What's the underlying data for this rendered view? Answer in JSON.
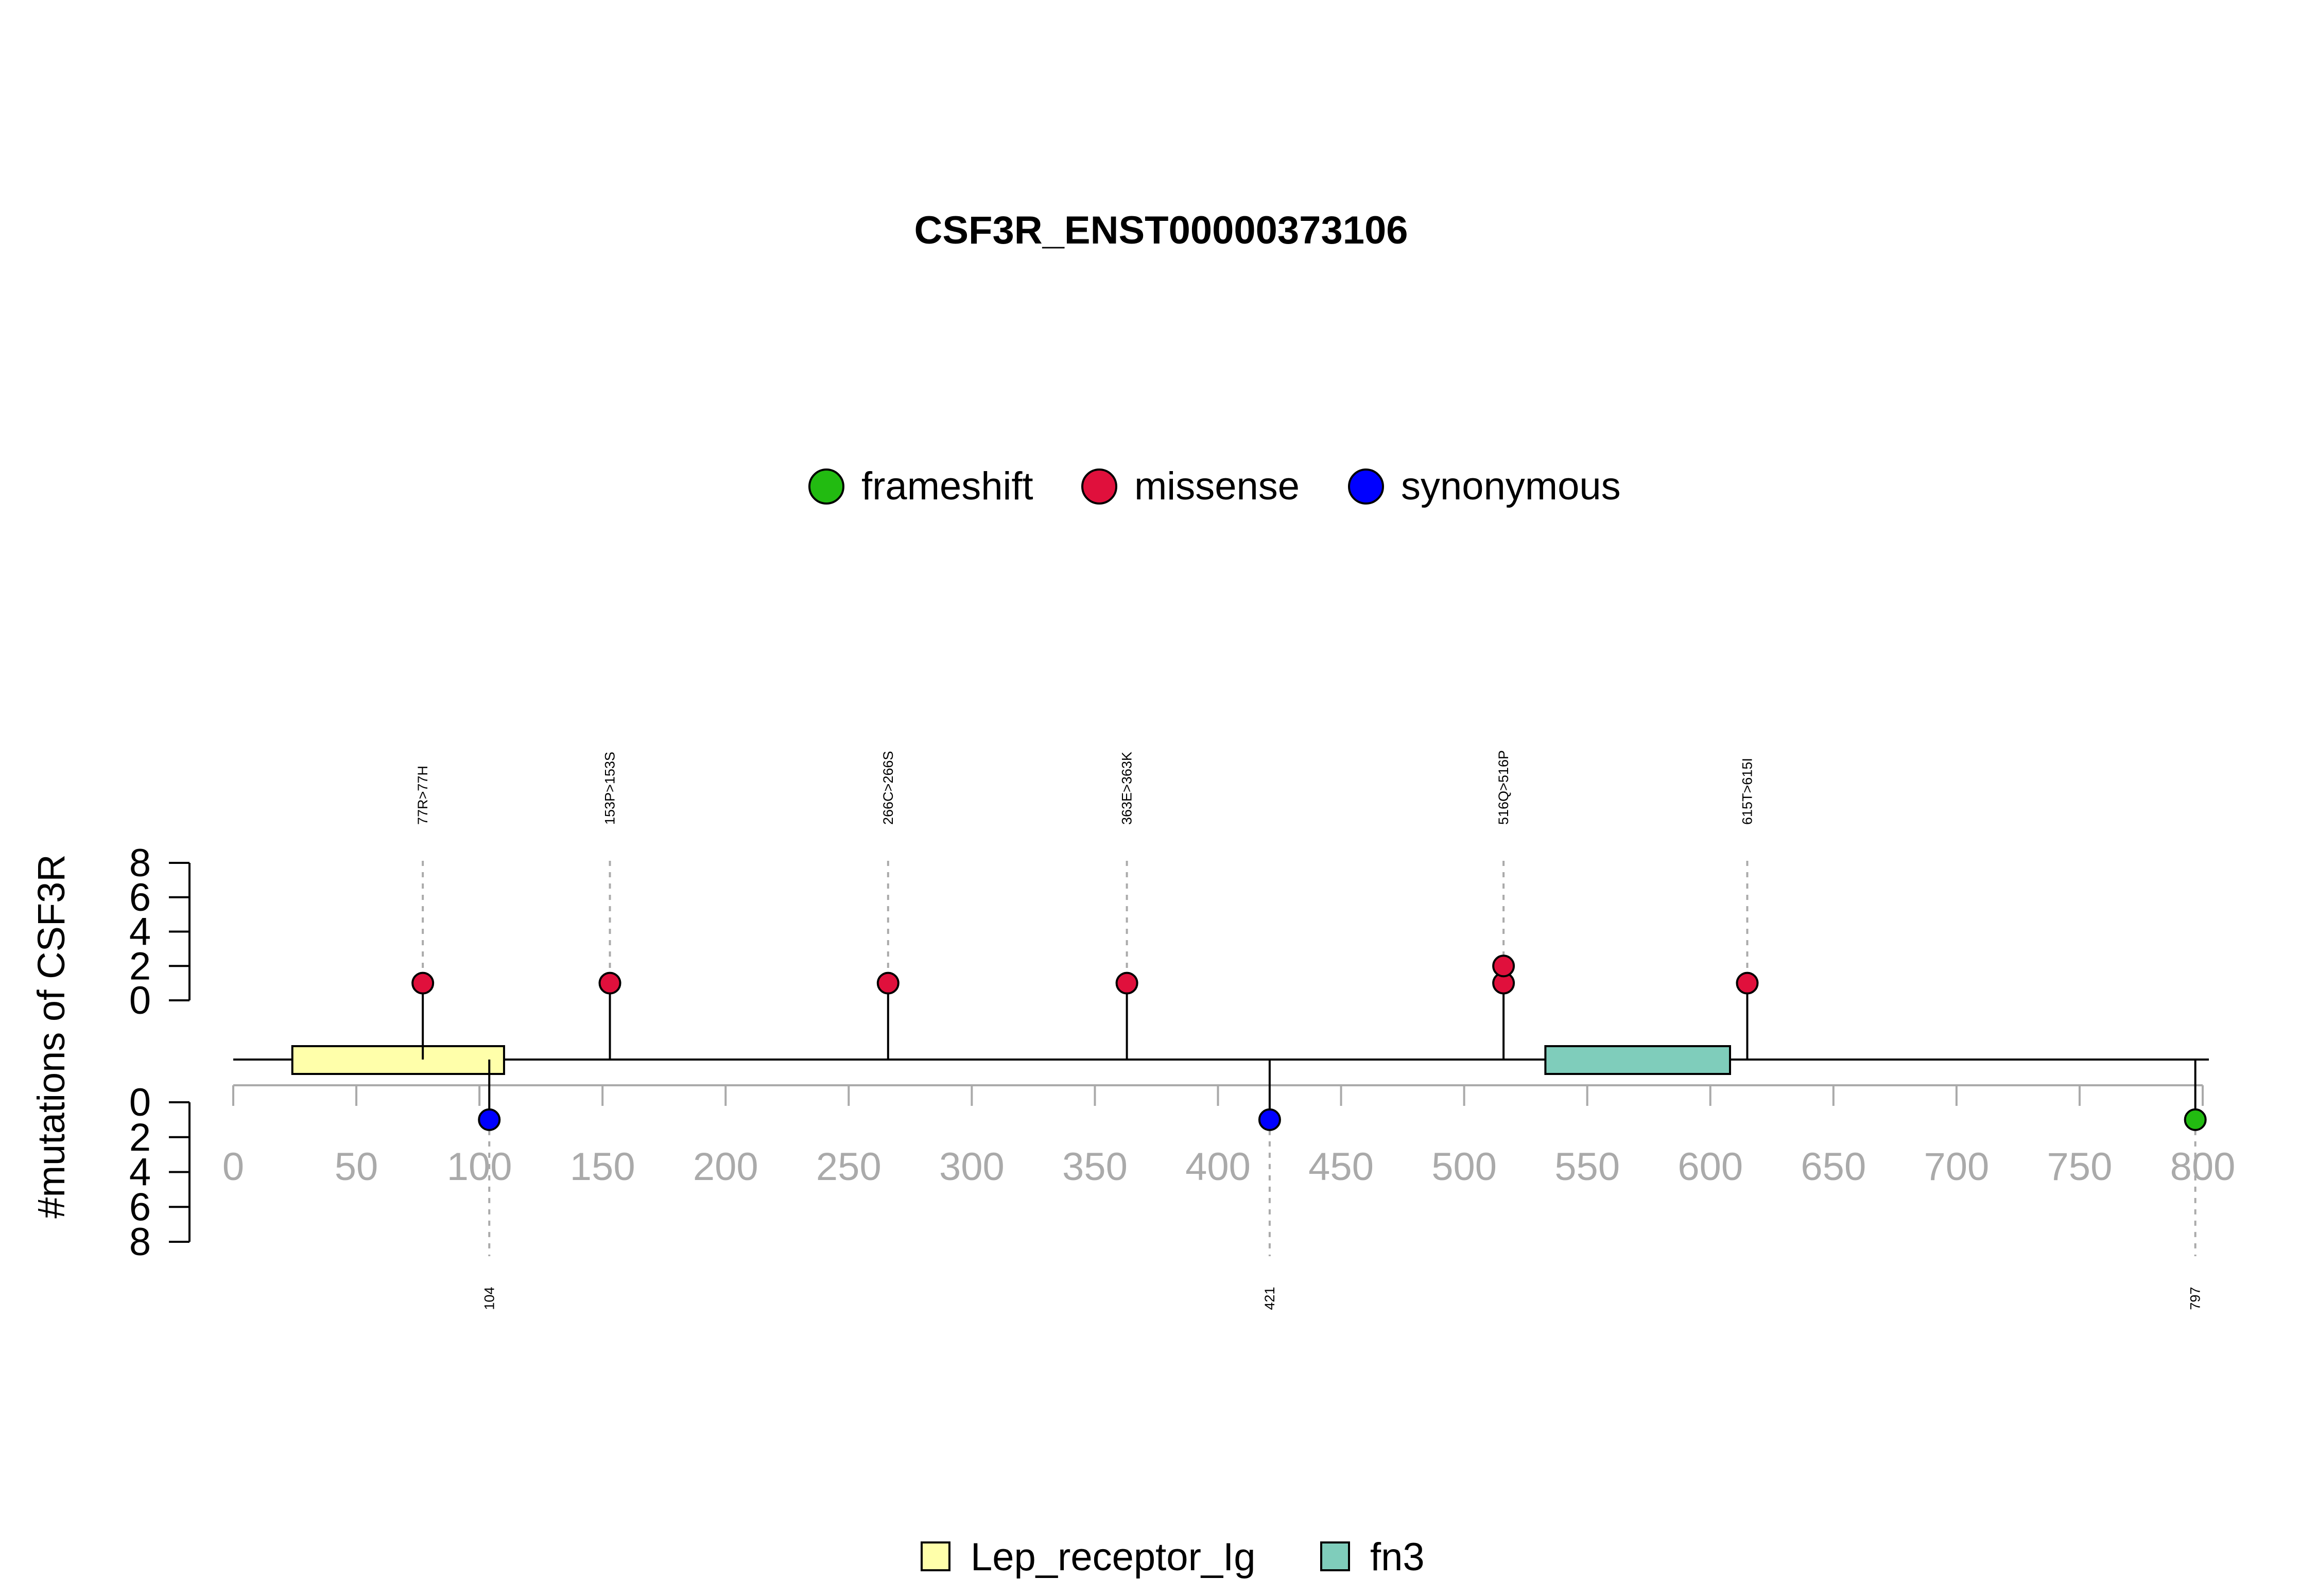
{
  "chart_data": {
    "type": "lollipop",
    "title": "CSF3R_ENST00000373106",
    "ylabel": "#mutations of CSF3R",
    "x_range": [
      0,
      800
    ],
    "x_ticks": [
      0,
      50,
      100,
      150,
      200,
      250,
      300,
      350,
      400,
      450,
      500,
      550,
      600,
      650,
      700,
      750,
      800
    ],
    "y_range_top": [
      0,
      8
    ],
    "y_range_bottom": [
      0,
      8
    ],
    "y_ticks": [
      0,
      2,
      4,
      6,
      8
    ],
    "protein_length": 800,
    "mutation_legend": [
      {
        "label": "frameshift",
        "color": "#22bb11"
      },
      {
        "label": "missense",
        "color": "#e0103c"
      },
      {
        "label": "synonymous",
        "color": "#0000ff"
      }
    ],
    "domains": [
      {
        "name": "Lep_receptor_Ig",
        "start": 24,
        "end": 110,
        "color": "#ffffaa"
      },
      {
        "name": "fn3",
        "start": 533,
        "end": 608,
        "color": "#7fcdbb"
      }
    ],
    "mutations_top": [
      {
        "position": 77,
        "label": "77R>77H",
        "type": "missense",
        "count": 1
      },
      {
        "position": 153,
        "label": "153P>153S",
        "type": "missense",
        "count": 1
      },
      {
        "position": 266,
        "label": "266C>266S",
        "type": "missense",
        "count": 1
      },
      {
        "position": 363,
        "label": "363E>363K",
        "type": "missense",
        "count": 1
      },
      {
        "position": 516,
        "label": "516Q>516P",
        "type": "missense",
        "count": 2
      },
      {
        "position": 615,
        "label": "615T>615I",
        "type": "missense",
        "count": 1
      }
    ],
    "mutations_bottom": [
      {
        "position": 104,
        "label": "104",
        "type": "synonymous",
        "count": 1
      },
      {
        "position": 421,
        "label": "421",
        "type": "synonymous",
        "count": 1
      },
      {
        "position": 797,
        "label": "797",
        "type": "frameshift",
        "count": 1
      }
    ]
  }
}
